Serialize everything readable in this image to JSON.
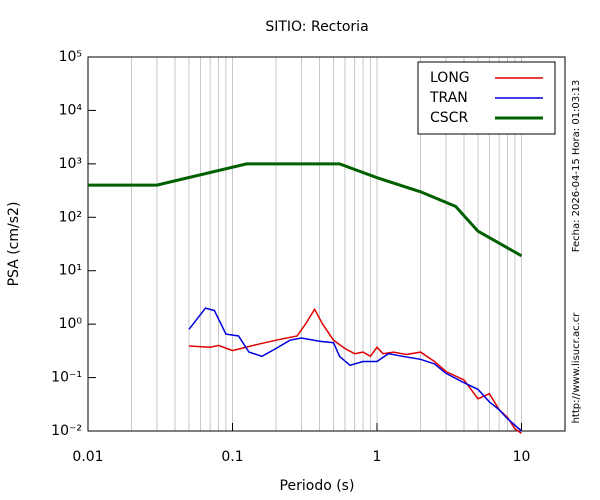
{
  "chart_data": {
    "type": "line",
    "title": "SITIO: Rectoria",
    "x_label": "Periodo (s)",
    "y_label": "PSA (cm/s2)",
    "side_notes": [
      "Fecha: 2026-04-15 Hora: 01:03:13",
      "http://www.lisucr.ac.cr"
    ],
    "log_x": true,
    "log_y": true,
    "grid": true,
    "legend": "top-right",
    "xlim": [
      0.01,
      20
    ],
    "xticks": [
      0.01,
      0.1,
      1,
      10
    ],
    "ylim": [
      0.01,
      100000
    ],
    "yticks": [
      {
        "value": 0.01,
        "label": "10⁻²"
      },
      {
        "value": 0.1,
        "label": "10⁻¹"
      },
      {
        "value": 1,
        "label": "10⁰"
      },
      {
        "value": 10,
        "label": "10¹"
      },
      {
        "value": 100,
        "label": "10²"
      },
      {
        "value": 1000,
        "label": "10³"
      },
      {
        "value": 10000,
        "label": "10⁴"
      },
      {
        "value": 100000,
        "label": "10⁵"
      }
    ],
    "series": [
      {
        "name": "LONG",
        "color": "#e00000",
        "linewidth": 1.5,
        "x": [
          0.05,
          0.07,
          0.08,
          0.1,
          0.15,
          0.2,
          0.28,
          0.32,
          0.37,
          0.42,
          0.5,
          0.6,
          0.7,
          0.8,
          0.9,
          1.0,
          1.1,
          1.3,
          1.6,
          2,
          2.5,
          3,
          4,
          5,
          6,
          7,
          8,
          9,
          10
        ],
        "values": [
          0.39,
          0.37,
          0.4,
          0.32,
          0.42,
          0.5,
          0.6,
          1.0,
          1.9,
          1.0,
          0.5,
          0.35,
          0.28,
          0.3,
          0.25,
          0.37,
          0.28,
          0.3,
          0.27,
          0.3,
          0.2,
          0.13,
          0.09,
          0.04,
          0.05,
          0.025,
          0.018,
          0.011,
          0.009
        ]
      },
      {
        "name": "TRAN",
        "color": "#0000e0",
        "linewidth": 1.5,
        "x": [
          0.05,
          0.065,
          0.075,
          0.09,
          0.11,
          0.13,
          0.16,
          0.2,
          0.25,
          0.3,
          0.4,
          0.5,
          0.55,
          0.65,
          0.8,
          1,
          1.2,
          1.5,
          2,
          2.5,
          3,
          4,
          5,
          6,
          7,
          8,
          10
        ],
        "values": [
          0.8,
          2.0,
          1.8,
          0.65,
          0.6,
          0.3,
          0.25,
          0.35,
          0.5,
          0.55,
          0.48,
          0.45,
          0.25,
          0.17,
          0.2,
          0.2,
          0.28,
          0.25,
          0.22,
          0.18,
          0.12,
          0.08,
          0.06,
          0.035,
          0.025,
          0.017,
          0.01
        ]
      },
      {
        "name": "CSCR",
        "color": "#006000",
        "linewidth": 3,
        "x": [
          0.01,
          0.03,
          0.125,
          0.55,
          1,
          2,
          3.5,
          5,
          10
        ],
        "values": [
          400,
          400,
          1000,
          1000,
          550,
          300,
          160,
          55,
          19
        ]
      }
    ]
  }
}
